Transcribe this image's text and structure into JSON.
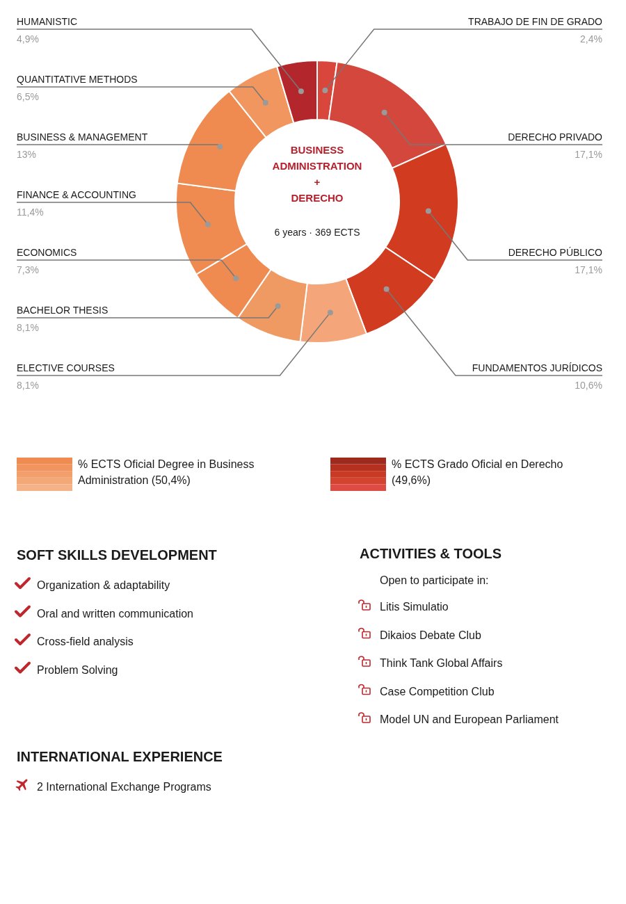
{
  "chart_data": [
    {
      "type": "donut",
      "title": "BUSINESS ADMINISTRATION + DERECHO",
      "subtitle": "6 years · 369 ECTS",
      "categories": [
        "TRABAJO DE FIN DE GRADO",
        "DERECHO PRIVADO",
        "DERECHO PÚBLICO",
        "FUNDAMENTOS JURÍDICOS",
        "ELECTIVE COURSES",
        "BACHELOR THESIS",
        "ECONOMICS",
        "FINANCE & ACCOUNTING",
        "BUSINESS & MANAGEMENT",
        "QUANTITATIVE METHODS",
        "HUMANISTIC"
      ],
      "values": [
        2.4,
        17.1,
        17.1,
        10.6,
        8.1,
        8.1,
        7.3,
        11.4,
        13,
        6.5,
        4.9
      ],
      "value_labels": [
        "2,4%",
        "17,1%",
        "17,1%",
        "10,6%",
        "8,1%",
        "8,1%",
        "7,3%",
        "11,4%",
        "13%",
        "6,5%",
        "4,9%"
      ],
      "colors": [
        "#d9473c",
        "#d4473c",
        "#d13b20",
        "#d13b20",
        "#f4a67a",
        "#f09a63",
        "#ef8a50",
        "#ef8a50",
        "#ef8a50",
        "#f0965e",
        "#b3262c"
      ],
      "annotations": [
        "% ECTS Oficial Degree in Business Administration (50,4%)",
        "% ECTS Grado Oficial en Derecho (49,6%)"
      ]
    },
    {
      "type": "other",
      "title": "SOFT SKILLS DEVELOPMENT",
      "annotations": [
        "Organization & adaptability",
        "Oral and written communication",
        "Cross-field analysis",
        "Problem Solving"
      ]
    },
    {
      "type": "other",
      "title": "ACTIVITIES & TOOLS",
      "subtitle": "Open to participate in:",
      "annotations": [
        "Litis Simulatio",
        "Dikaios Debate Club",
        "Think Tank Global Affairs",
        "Case Competition Club",
        "Model UN and European Parliament"
      ]
    },
    {
      "type": "other",
      "title": "INTERNATIONAL EXPERIENCE",
      "annotations": [
        "2 International Exchange Programs"
      ]
    }
  ]
}
